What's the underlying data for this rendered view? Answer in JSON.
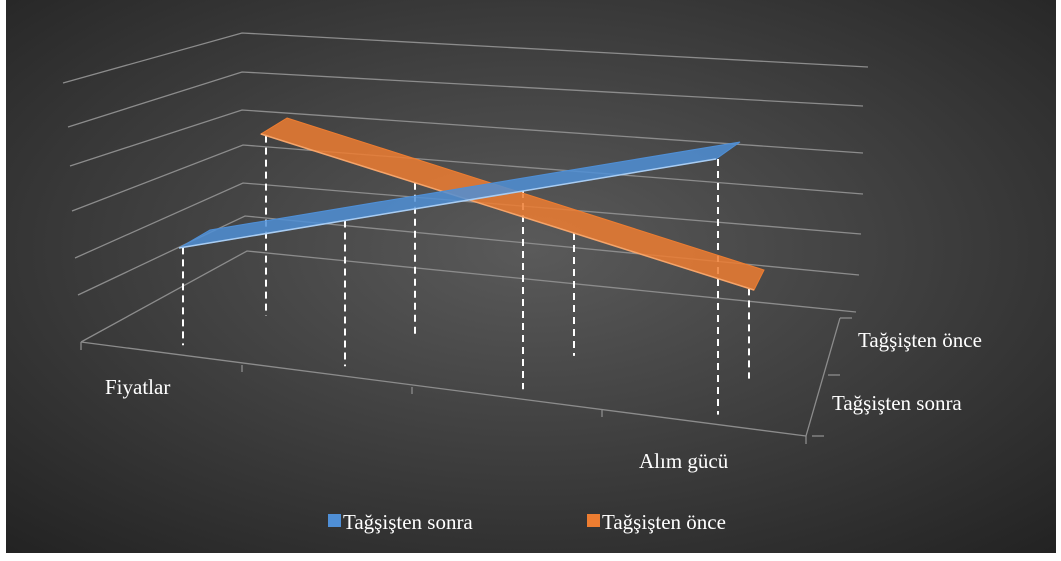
{
  "chart_data": {
    "type": "line",
    "categories": [
      "Fiyatlar",
      "Alım gücü"
    ],
    "x_tick_labels": [
      "Fiyatlar",
      "Alım gücü"
    ],
    "depth_labels": [
      "Tağşişten önce",
      "Tağşişten sonra"
    ],
    "series": [
      {
        "name": "Tağşişten sonra",
        "color": "#4f8fd6",
        "values": [
          1,
          5
        ]
      },
      {
        "name": "Tağşişten önce",
        "color": "#ed7d31",
        "values": [
          5,
          1
        ]
      }
    ],
    "legend_position": "bottom",
    "grid": true,
    "background": [
      "#5a5a5a",
      "#222222"
    ]
  }
}
